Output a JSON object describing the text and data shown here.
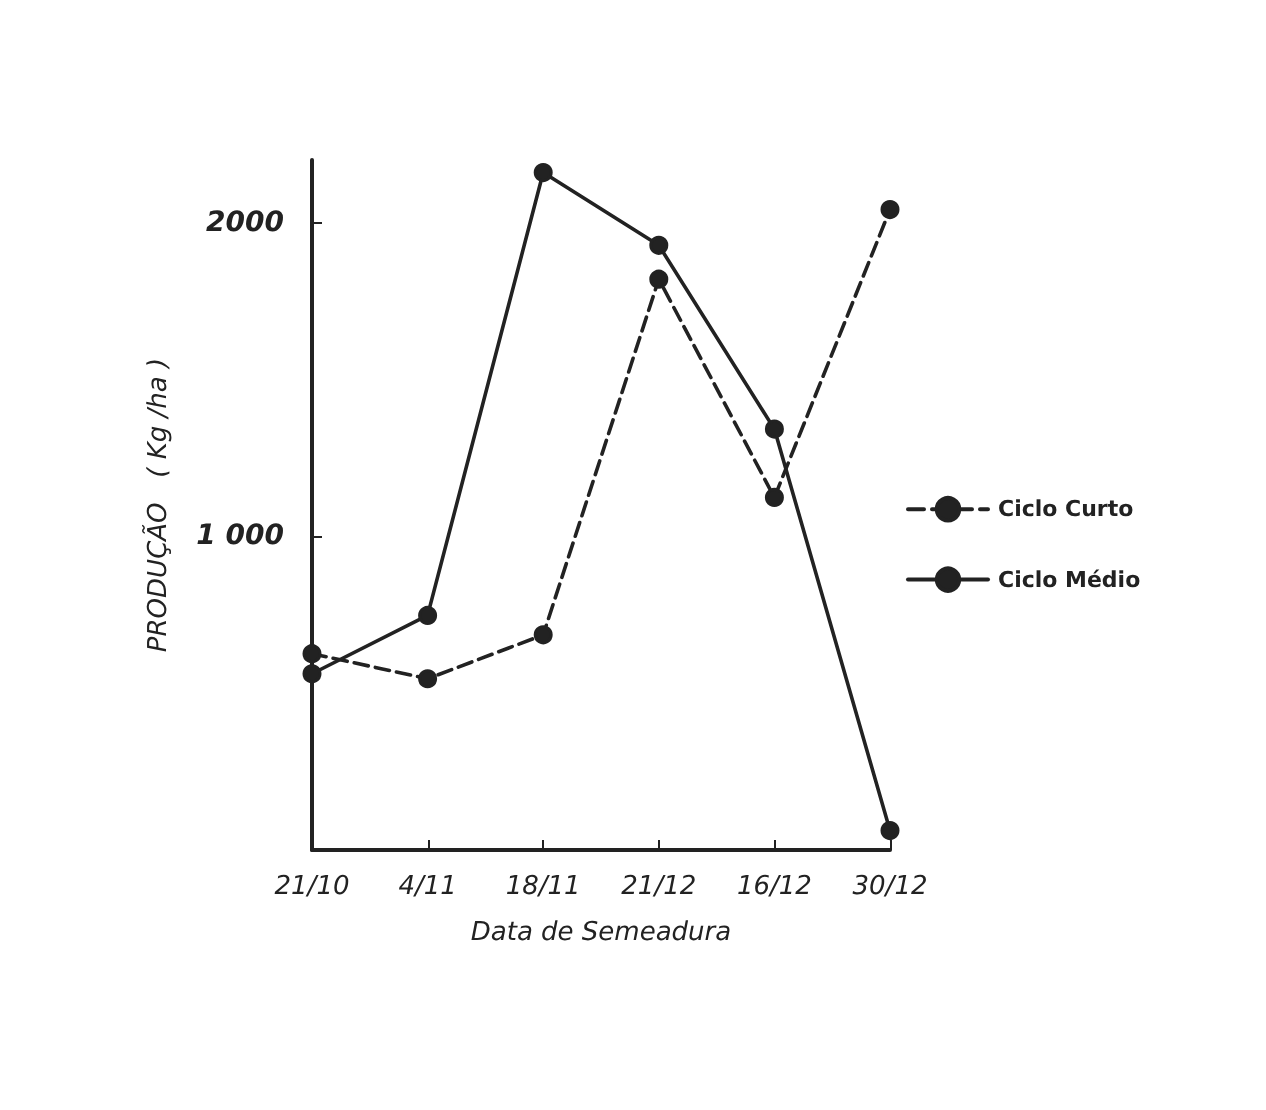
{
  "chart_data": {
    "type": "line",
    "xlabel": "Data de Semeadura",
    "ylabel": "PRODUÇÃO   ( Kg /ha )",
    "categories": [
      "21/10",
      "4/11",
      "18/11",
      "21/12",
      "16/12",
      "30/12"
    ],
    "series": [
      {
        "name": "Ciclo Curto",
        "color": "#222222",
        "line_style": "dashed",
        "values": [
          626,
          546,
          686,
          1820,
          1124,
          2042
        ]
      },
      {
        "name": "Ciclo Médio",
        "color": "#222222",
        "line_style": "solid",
        "values": [
          562,
          748,
          2160,
          1928,
          1342,
          62
        ]
      }
    ],
    "ylim": [
      0,
      2200
    ],
    "yticks": [
      {
        "value": 1000,
        "label": "1 000"
      },
      2000
    ],
    "grid": false,
    "legend": "right",
    "marker": "circle"
  }
}
